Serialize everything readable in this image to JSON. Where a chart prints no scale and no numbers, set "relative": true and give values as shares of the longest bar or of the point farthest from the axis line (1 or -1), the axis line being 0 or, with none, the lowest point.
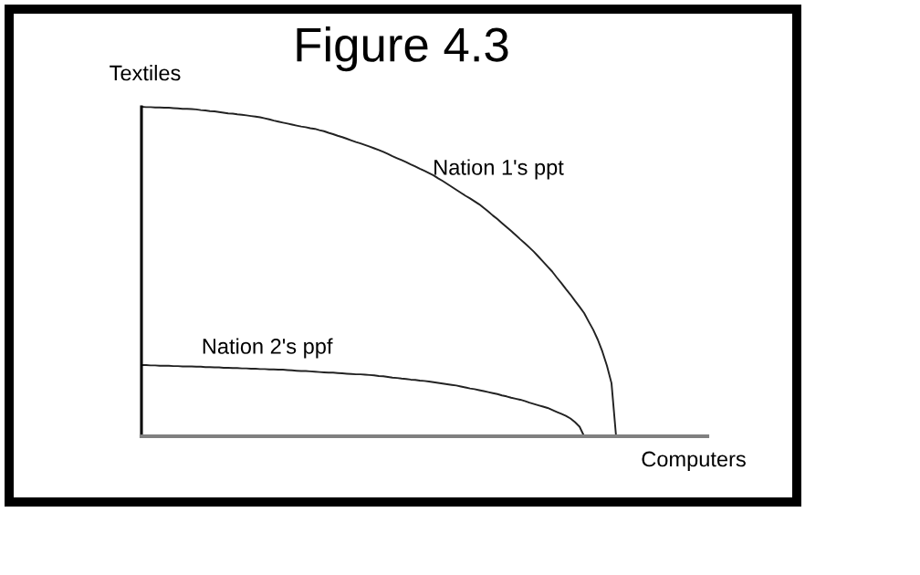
{
  "chart_data": {
    "type": "line",
    "title": "Figure 4.3",
    "xlabel": "Computers",
    "ylabel": "Textiles",
    "relative": true,
    "line_style": "solid",
    "categories": [
      null,
      null,
      null,
      null,
      null,
      null,
      null,
      null,
      null,
      null,
      null,
      null,
      null,
      null,
      null,
      null,
      null,
      null,
      null,
      null,
      null,
      null,
      null,
      null,
      null,
      null,
      null,
      null,
      null,
      null,
      null,
      null,
      null,
      null,
      null,
      null,
      null,
      null,
      null,
      null,
      null,
      null,
      null,
      null,
      null,
      null,
      null,
      null,
      null,
      null,
      null,
      null,
      null,
      null,
      null,
      null,
      null,
      null,
      null,
      null,
      null,
      null,
      null,
      null,
      null,
      null,
      null,
      null,
      null,
      null,
      null,
      null,
      null,
      null,
      null,
      null,
      null,
      null,
      null,
      null,
      null,
      null,
      null,
      null,
      null,
      null,
      null,
      null,
      null,
      null,
      null,
      null,
      null,
      null,
      null,
      null,
      null,
      null,
      null,
      null,
      null,
      null,
      null,
      null,
      null,
      null,
      null,
      null,
      null,
      null,
      null,
      null,
      null,
      null,
      null,
      null,
      null,
      null,
      null,
      null,
      null,
      null,
      null,
      null,
      null
    ],
    "series": [
      {
        "name": "Nation 1's ppt",
        "color": "#222222",
        "values": [
          1.0,
          0.999,
          0.999,
          0.998,
          0.998,
          0.997,
          0.997,
          0.996,
          0.995,
          0.994,
          0.994,
          0.993,
          0.992,
          0.99,
          0.989,
          0.987,
          0.986,
          0.984,
          0.982,
          0.98,
          0.979,
          0.977,
          0.976,
          0.974,
          0.972,
          0.97,
          0.968,
          0.965,
          0.962,
          0.958,
          0.955,
          0.952,
          0.949,
          0.946,
          0.943,
          0.94,
          0.938,
          0.935,
          0.933,
          0.929,
          0.926,
          0.921,
          0.917,
          0.912,
          0.908,
          0.903,
          0.898,
          0.893,
          0.889,
          0.884,
          0.879,
          0.874,
          0.869,
          0.863,
          0.857,
          0.85,
          0.844,
          0.838,
          0.832,
          0.825,
          0.819,
          0.812,
          0.806,
          0.799,
          0.792,
          0.783,
          0.775,
          0.766,
          0.757,
          0.748,
          0.739,
          0.73,
          0.722,
          0.713,
          0.704,
          0.693,
          0.682,
          0.67,
          0.659,
          0.647,
          0.635,
          0.623,
          0.611,
          0.598,
          0.586,
          0.573,
          0.56,
          0.545,
          0.53,
          0.515,
          0.5,
          0.482,
          0.465,
          0.447,
          0.43,
          0.411,
          0.393,
          0.374,
          0.348,
          0.323,
          0.293,
          0.257,
          0.214,
          0.161,
          0,
          null,
          null,
          null,
          null,
          null,
          null,
          null,
          null,
          null,
          null,
          null,
          null,
          null,
          null,
          null,
          null,
          null,
          null,
          null,
          null
        ]
      },
      {
        "name": "Nation 2's ppf",
        "color": "#222222",
        "values": [
          0.216,
          0.216,
          0.215,
          0.215,
          0.214,
          0.214,
          0.214,
          0.213,
          0.213,
          0.212,
          0.212,
          0.212,
          0.211,
          0.211,
          0.21,
          0.21,
          0.209,
          0.209,
          0.208,
          0.208,
          0.207,
          0.207,
          0.206,
          0.206,
          0.205,
          0.205,
          0.204,
          0.204,
          0.203,
          0.203,
          0.202,
          0.202,
          0.201,
          0.2,
          0.199,
          0.198,
          0.198,
          0.197,
          0.196,
          0.195,
          0.194,
          0.193,
          0.193,
          0.192,
          0.191,
          0.19,
          0.189,
          0.188,
          0.188,
          0.187,
          0.186,
          0.185,
          0.183,
          0.182,
          0.18,
          0.178,
          0.177,
          0.175,
          0.174,
          0.172,
          0.171,
          0.169,
          0.168,
          0.166,
          0.164,
          0.162,
          0.16,
          0.158,
          0.156,
          0.154,
          0.151,
          0.148,
          0.145,
          0.143,
          0.14,
          0.137,
          0.134,
          0.131,
          0.128,
          0.124,
          0.121,
          0.117,
          0.114,
          0.111,
          0.107,
          0.102,
          0.098,
          0.094,
          0.09,
          0.086,
          0.08,
          0.074,
          0.068,
          0.062,
          0.054,
          0.043,
          0.029,
          0,
          null,
          null,
          null,
          null,
          null,
          null,
          null,
          null,
          null,
          null,
          null,
          null,
          null,
          null,
          null,
          null,
          null,
          null,
          null,
          null,
          null,
          null,
          null,
          null,
          null,
          null,
          null
        ]
      }
    ]
  }
}
